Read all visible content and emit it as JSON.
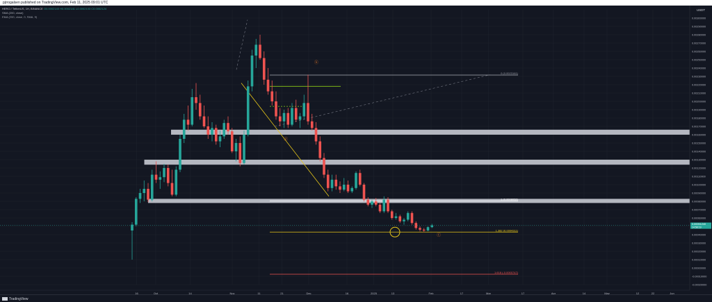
{
  "header": {
    "publish_line": "pjrrogalsen published on TradingView.com, Feb 11, 2025 09:01 UTC"
  },
  "legend": {
    "symbol_line": "HERO / TetherUS, 1H, BINANCE",
    "ohlc": "O0.0002140 H0.0002141 L0.0002103 C0.0002124",
    "sma": "SMA (200, close)",
    "ema": "EMA (200, close, 0, SMA, 9)"
  },
  "footer": {
    "logo_text": "TradingView"
  },
  "colors": {
    "background": "#131722",
    "up": "#26a69a",
    "down": "#ef5350",
    "zone": "#d1d4dc",
    "fib": "#e6c619",
    "green_line": "#7cb518",
    "marker": "#c86a28"
  },
  "chart_data": {
    "type": "candlestick",
    "title": "",
    "currency": "USDT",
    "ylim": [
      -0.0002,
      0.0031
    ],
    "yticks": [
      {
        "v": 0.003,
        "label": "0.00300000"
      },
      {
        "v": 0.0029,
        "label": "0.00290000"
      },
      {
        "v": 0.0028,
        "label": "0.00280000"
      },
      {
        "v": 0.0027,
        "label": "0.00270000"
      },
      {
        "v": 0.0026,
        "label": "0.00260000"
      },
      {
        "v": 0.0025,
        "label": "0.00250000"
      },
      {
        "v": 0.0024,
        "label": "0.00240000"
      },
      {
        "v": 0.0023,
        "label": "0.00230000"
      },
      {
        "v": 0.0022,
        "label": "0.00220000"
      },
      {
        "v": 0.0021,
        "label": "0.00210000"
      },
      {
        "v": 0.002,
        "label": "0.00200000"
      },
      {
        "v": 0.0019,
        "label": "0.00190000"
      },
      {
        "v": 0.0018,
        "label": "0.00180000"
      },
      {
        "v": 0.0017,
        "label": "0.00170000"
      },
      {
        "v": 0.0016,
        "label": "0.00160000"
      },
      {
        "v": 0.0015,
        "label": "0.00150000"
      },
      {
        "v": 0.0014,
        "label": "0.00140000"
      },
      {
        "v": 0.0013,
        "label": "0.00130000"
      },
      {
        "v": 0.0012,
        "label": "0.00120000"
      },
      {
        "v": 0.0011,
        "label": "0.00110000"
      },
      {
        "v": 0.001,
        "label": "0.00100000"
      },
      {
        "v": 0.0009,
        "label": "0.00090000"
      },
      {
        "v": 0.0008,
        "label": "0.00080000"
      },
      {
        "v": 0.0007,
        "label": "0.00070000"
      },
      {
        "v": 0.0006,
        "label": "0.00060000"
      },
      {
        "v": 0.0005,
        "label": "0.00050000"
      },
      {
        "v": 0.0004,
        "label": "0.00040000"
      },
      {
        "v": 0.0003,
        "label": "0.00030000"
      },
      {
        "v": 0.0002,
        "label": "0.00020000"
      },
      {
        "v": 0.0001,
        "label": "0.00010000"
      },
      {
        "v": 0.0,
        "label": "0.00000000"
      },
      {
        "v": -0.0001,
        "label": "-0.00010000"
      },
      {
        "v": -0.0002,
        "label": "-0.00020000"
      }
    ],
    "xlim": [
      0,
      140
    ],
    "xticks": [
      {
        "x": 3,
        "label": "16"
      },
      {
        "x": 8,
        "label": "Oct"
      },
      {
        "x": 17,
        "label": "14"
      },
      {
        "x": 28,
        "label": "Nov"
      },
      {
        "x": 35,
        "label": "11"
      },
      {
        "x": 41,
        "label": "21"
      },
      {
        "x": 48,
        "label": "Dec"
      },
      {
        "x": 58,
        "label": "16"
      },
      {
        "x": 65,
        "label": "2025"
      },
      {
        "x": 70,
        "label": "13"
      },
      {
        "x": 80,
        "label": "Feb"
      },
      {
        "x": 88,
        "label": "17"
      },
      {
        "x": 95,
        "label": "Mar"
      },
      {
        "x": 104,
        "label": "17"
      },
      {
        "x": 112,
        "label": "Apr"
      },
      {
        "x": 120,
        "label": "14"
      },
      {
        "x": 126,
        "label": "May"
      },
      {
        "x": 134,
        "label": "12"
      },
      {
        "x": 138,
        "label": "22"
      },
      {
        "x": 143,
        "label": "Jun"
      }
    ],
    "last_price": {
      "value": 0.000512,
      "label": "0.00051240",
      "countdown": "14:58:19"
    },
    "zones": [
      {
        "y0": 0.00166,
        "y1": 0.0016,
        "x0": 12,
        "x1": 150
      },
      {
        "y0": 0.0013,
        "y1": 0.00124,
        "x0": 5,
        "x1": 150
      },
      {
        "y0": 0.00083,
        "y1": 0.00078,
        "x0": 6,
        "x1": 150
      }
    ],
    "fib_levels": [
      {
        "value": 0.002316,
        "label": "0 (0.0023161)",
        "color": "#9598a1"
      },
      {
        "value": 0.000805,
        "label": "1 (0.0008052)",
        "color": "#ffffff"
      },
      {
        "value": 0.000431,
        "label": "1.382 (0.0004311)",
        "color": "#e6c619"
      },
      {
        "value": -7.5e-05,
        "label": "1.618 (-0.0000747)",
        "color": "#ef5350"
      }
    ],
    "wave_labels": [
      {
        "label": "ⓑ",
        "x": 50,
        "y": 0.00245
      },
      {
        "label": "ⓐ",
        "x": 42,
        "y": 0.00153
      },
      {
        "label": "ⓒ",
        "x": 82,
        "y": 0.00038
      }
    ],
    "candles": [
      {
        "o": 0.00045,
        "h": 0.00055,
        "l": 0.0001,
        "c": 0.00052
      },
      {
        "o": 0.00052,
        "h": 0.00085,
        "l": 0.0005,
        "c": 0.00083
      },
      {
        "o": 0.00083,
        "h": 0.00095,
        "l": 0.00078,
        "c": 0.0009
      },
      {
        "o": 0.0009,
        "h": 0.00105,
        "l": 0.0008,
        "c": 0.00095
      },
      {
        "o": 0.00095,
        "h": 0.00102,
        "l": 0.00079,
        "c": 0.00082
      },
      {
        "o": 0.00082,
        "h": 0.00118,
        "l": 0.0008,
        "c": 0.00112
      },
      {
        "o": 0.00112,
        "h": 0.00128,
        "l": 0.00102,
        "c": 0.00106
      },
      {
        "o": 0.00106,
        "h": 0.00116,
        "l": 0.00095,
        "c": 0.00109
      },
      {
        "o": 0.00109,
        "h": 0.00125,
        "l": 0.00103,
        "c": 0.0012
      },
      {
        "o": 0.0012,
        "h": 0.00124,
        "l": 0.00098,
        "c": 0.00102
      },
      {
        "o": 0.00102,
        "h": 0.00118,
        "l": 0.00086,
        "c": 0.00088
      },
      {
        "o": 0.00088,
        "h": 0.00122,
        "l": 0.00086,
        "c": 0.00118
      },
      {
        "o": 0.00118,
        "h": 0.0016,
        "l": 0.00115,
        "c": 0.00155
      },
      {
        "o": 0.00155,
        "h": 0.00185,
        "l": 0.0015,
        "c": 0.00178
      },
      {
        "o": 0.00178,
        "h": 0.00195,
        "l": 0.00165,
        "c": 0.00172
      },
      {
        "o": 0.00172,
        "h": 0.00215,
        "l": 0.0017,
        "c": 0.00205
      },
      {
        "o": 0.00205,
        "h": 0.00222,
        "l": 0.0019,
        "c": 0.00198
      },
      {
        "o": 0.00198,
        "h": 0.00208,
        "l": 0.00178,
        "c": 0.00182
      },
      {
        "o": 0.00182,
        "h": 0.00195,
        "l": 0.00168,
        "c": 0.0017
      },
      {
        "o": 0.0017,
        "h": 0.00182,
        "l": 0.00155,
        "c": 0.0016
      },
      {
        "o": 0.0016,
        "h": 0.00175,
        "l": 0.00152,
        "c": 0.00168
      },
      {
        "o": 0.00168,
        "h": 0.00172,
        "l": 0.00148,
        "c": 0.00152
      },
      {
        "o": 0.00152,
        "h": 0.00165,
        "l": 0.00145,
        "c": 0.00158
      },
      {
        "o": 0.00158,
        "h": 0.00178,
        "l": 0.00155,
        "c": 0.00174
      },
      {
        "o": 0.00174,
        "h": 0.00182,
        "l": 0.0016,
        "c": 0.00164
      },
      {
        "o": 0.00164,
        "h": 0.00168,
        "l": 0.00138,
        "c": 0.0014
      },
      {
        "o": 0.0014,
        "h": 0.00155,
        "l": 0.00128,
        "c": 0.0015
      },
      {
        "o": 0.0015,
        "h": 0.00158,
        "l": 0.00122,
        "c": 0.00126
      },
      {
        "o": 0.00126,
        "h": 0.00165,
        "l": 0.00124,
        "c": 0.0016
      },
      {
        "o": 0.0016,
        "h": 0.00225,
        "l": 0.00158,
        "c": 0.00218
      },
      {
        "o": 0.00218,
        "h": 0.00262,
        "l": 0.00212,
        "c": 0.00255
      },
      {
        "o": 0.00255,
        "h": 0.00275,
        "l": 0.0024,
        "c": 0.00268
      },
      {
        "o": 0.00268,
        "h": 0.0028,
        "l": 0.0025,
        "c": 0.00252
      },
      {
        "o": 0.00252,
        "h": 0.0026,
        "l": 0.0022,
        "c": 0.00226
      },
      {
        "o": 0.00226,
        "h": 0.0024,
        "l": 0.00208,
        "c": 0.00212
      },
      {
        "o": 0.00212,
        "h": 0.00225,
        "l": 0.00195,
        "c": 0.002
      },
      {
        "o": 0.002,
        "h": 0.00212,
        "l": 0.00178,
        "c": 0.00182
      },
      {
        "o": 0.00182,
        "h": 0.00192,
        "l": 0.0017,
        "c": 0.00176
      },
      {
        "o": 0.00176,
        "h": 0.0019,
        "l": 0.00168,
        "c": 0.00186
      },
      {
        "o": 0.00186,
        "h": 0.00192,
        "l": 0.00168,
        "c": 0.00172
      },
      {
        "o": 0.00172,
        "h": 0.00198,
        "l": 0.0017,
        "c": 0.00192
      },
      {
        "o": 0.00192,
        "h": 0.00202,
        "l": 0.00175,
        "c": 0.00178
      },
      {
        "o": 0.00178,
        "h": 0.00186,
        "l": 0.00168,
        "c": 0.00182
      },
      {
        "o": 0.00182,
        "h": 0.00208,
        "l": 0.00178,
        "c": 0.00198
      },
      {
        "o": 0.00198,
        "h": 0.00232,
        "l": 0.00172,
        "c": 0.00176
      },
      {
        "o": 0.00176,
        "h": 0.00185,
        "l": 0.00165,
        "c": 0.00168
      },
      {
        "o": 0.00168,
        "h": 0.00175,
        "l": 0.00148,
        "c": 0.00152
      },
      {
        "o": 0.00152,
        "h": 0.00158,
        "l": 0.00128,
        "c": 0.00132
      },
      {
        "o": 0.00132,
        "h": 0.00138,
        "l": 0.00108,
        "c": 0.00112
      },
      {
        "o": 0.00112,
        "h": 0.00118,
        "l": 0.00092,
        "c": 0.00096
      },
      {
        "o": 0.00096,
        "h": 0.00112,
        "l": 0.00092,
        "c": 0.00106
      },
      {
        "o": 0.00106,
        "h": 0.00112,
        "l": 0.00094,
        "c": 0.00098
      },
      {
        "o": 0.00098,
        "h": 0.00104,
        "l": 0.0009,
        "c": 0.00094
      },
      {
        "o": 0.00094,
        "h": 0.00108,
        "l": 0.00092,
        "c": 0.001
      },
      {
        "o": 0.001,
        "h": 0.00105,
        "l": 0.0009,
        "c": 0.00092
      },
      {
        "o": 0.00092,
        "h": 0.00098,
        "l": 0.0009,
        "c": 0.00096
      },
      {
        "o": 0.00096,
        "h": 0.00116,
        "l": 0.00094,
        "c": 0.00114
      },
      {
        "o": 0.00114,
        "h": 0.00118,
        "l": 0.00098,
        "c": 0.001
      },
      {
        "o": 0.001,
        "h": 0.00102,
        "l": 0.0008,
        "c": 0.00082
      },
      {
        "o": 0.00082,
        "h": 0.00085,
        "l": 0.00074,
        "c": 0.00076
      },
      {
        "o": 0.00076,
        "h": 0.00082,
        "l": 0.00072,
        "c": 0.0008
      },
      {
        "o": 0.0008,
        "h": 0.00084,
        "l": 0.00074,
        "c": 0.00076
      },
      {
        "o": 0.00076,
        "h": 0.00078,
        "l": 0.00066,
        "c": 0.00068
      },
      {
        "o": 0.00068,
        "h": 0.00086,
        "l": 0.00066,
        "c": 0.00082
      },
      {
        "o": 0.00082,
        "h": 0.00085,
        "l": 0.00066,
        "c": 0.00068
      },
      {
        "o": 0.00068,
        "h": 0.0007,
        "l": 0.00058,
        "c": 0.0006
      },
      {
        "o": 0.0006,
        "h": 0.00066,
        "l": 0.00058,
        "c": 0.00062
      },
      {
        "o": 0.00062,
        "h": 0.00064,
        "l": 0.00054,
        "c": 0.00056
      },
      {
        "o": 0.00056,
        "h": 0.0006,
        "l": 0.00052,
        "c": 0.00058
      },
      {
        "o": 0.00058,
        "h": 0.00068,
        "l": 0.00056,
        "c": 0.00066
      },
      {
        "o": 0.00066,
        "h": 0.00068,
        "l": 0.00052,
        "c": 0.00054
      },
      {
        "o": 0.00054,
        "h": 0.00056,
        "l": 0.00046,
        "c": 0.00048
      },
      {
        "o": 0.00048,
        "h": 0.0005,
        "l": 0.00044,
        "c": 0.00046
      },
      {
        "o": 0.00046,
        "h": 0.00048,
        "l": 0.00043,
        "c": 0.00045
      },
      {
        "o": 0.00045,
        "h": 0.0005,
        "l": 0.00044,
        "c": 0.00049
      },
      {
        "o": 0.00049,
        "h": 0.00053,
        "l": 0.00048,
        "c": 0.000512
      }
    ]
  }
}
